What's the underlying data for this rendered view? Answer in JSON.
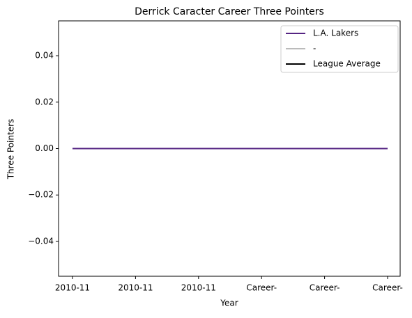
{
  "chart_data": {
    "type": "line",
    "title": "Derrick Caracter Career Three Pointers",
    "xlabel": "Year",
    "ylabel": "Three Pointers",
    "categories": [
      "2010-11",
      "2010-11",
      "2010-11",
      "Career-",
      "Career-",
      "Career-"
    ],
    "series": [
      {
        "name": "L.A. Lakers",
        "color": "#552583",
        "values": [
          0,
          0,
          0,
          0,
          0,
          0
        ]
      },
      {
        "name": "-",
        "color": "#bbbbbb",
        "values": [
          null,
          null,
          null,
          null,
          null,
          null
        ]
      },
      {
        "name": "League Average",
        "color": "#000000",
        "values": [
          null,
          null,
          null,
          null,
          null,
          null
        ]
      }
    ],
    "ylim": [
      -0.055,
      0.055
    ],
    "yticks": [
      {
        "value": -0.04,
        "label": "−0.04"
      },
      {
        "value": -0.02,
        "label": "−0.02"
      },
      {
        "value": 0,
        "label": "0.00"
      },
      0.02,
      0.04
    ],
    "legend": "upper right"
  }
}
